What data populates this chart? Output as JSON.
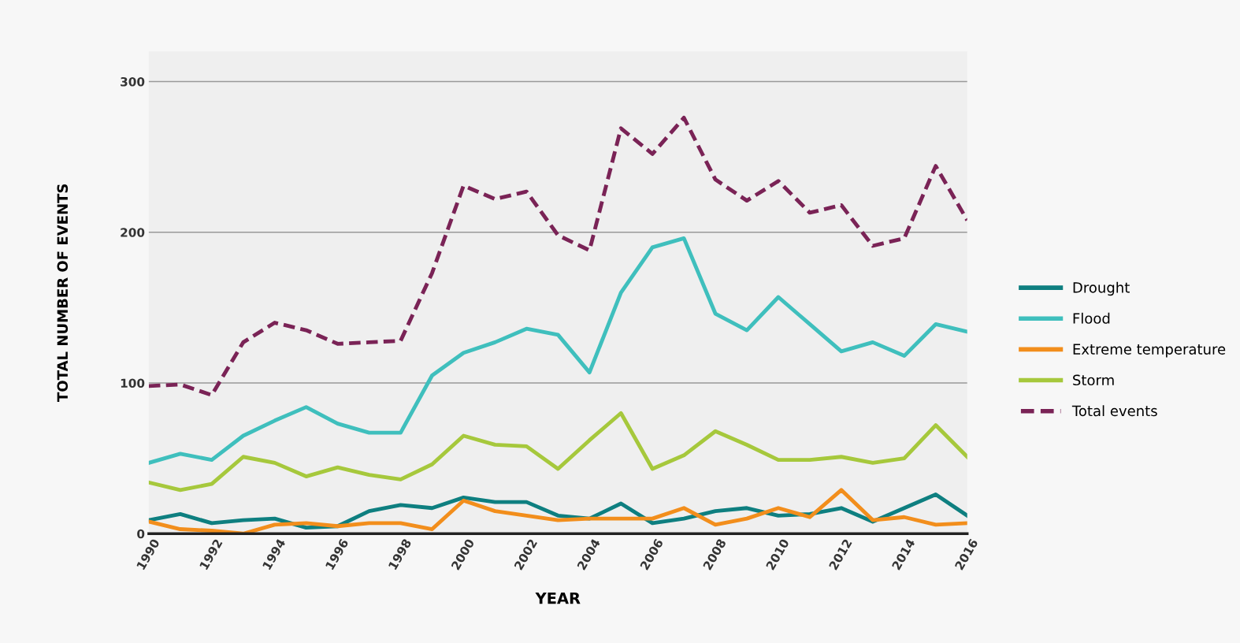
{
  "chart_data": {
    "type": "line",
    "xlabel": "YEAR",
    "ylabel": "TOTAL NUMBER OF EVENTS",
    "x": [
      1990,
      1991,
      1992,
      1993,
      1994,
      1995,
      1996,
      1997,
      1998,
      1999,
      2000,
      2001,
      2002,
      2003,
      2004,
      2005,
      2006,
      2007,
      2008,
      2009,
      2010,
      2011,
      2012,
      2013,
      2014,
      2015,
      2016
    ],
    "xlim": [
      1990,
      2016
    ],
    "xticks": [
      1990,
      1992,
      1994,
      1996,
      1998,
      2000,
      2002,
      2004,
      2006,
      2008,
      2010,
      2012,
      2014,
      2016
    ],
    "ylim": [
      0,
      320
    ],
    "yticks": [
      0,
      100,
      200,
      300
    ],
    "grid": "y",
    "legend": "right",
    "series": [
      {
        "name": "Drought",
        "color": "#0e7f80",
        "values": [
          9,
          13,
          7,
          9,
          10,
          4,
          5,
          15,
          19,
          17,
          24,
          21,
          21,
          12,
          10,
          20,
          7,
          10,
          15,
          17,
          12,
          13,
          17,
          8,
          17,
          26,
          12
        ]
      },
      {
        "name": "Flood",
        "color": "#3fbfbd",
        "values": [
          47,
          53,
          49,
          65,
          75,
          84,
          73,
          67,
          67,
          105,
          120,
          127,
          136,
          132,
          107,
          160,
          190,
          196,
          146,
          135,
          157,
          139,
          121,
          127,
          118,
          139,
          134
        ]
      },
      {
        "name": "Extreme temperature",
        "color": "#f28e1c",
        "values": [
          8,
          3,
          2,
          0,
          6,
          7,
          5,
          7,
          7,
          3,
          22,
          15,
          12,
          9,
          10,
          10,
          10,
          17,
          6,
          10,
          17,
          11,
          29,
          9,
          11,
          6,
          7
        ]
      },
      {
        "name": "Storm",
        "color": "#a6c83c",
        "values": [
          34,
          29,
          33,
          51,
          47,
          38,
          44,
          39,
          36,
          46,
          65,
          59,
          58,
          43,
          62,
          80,
          43,
          52,
          68,
          59,
          49,
          49,
          51,
          47,
          50,
          72,
          51
        ]
      },
      {
        "name": "Total events",
        "color": "#7a2356",
        "line_style": "dashed",
        "values": [
          98,
          99,
          92,
          127,
          140,
          135,
          126,
          127,
          128,
          173,
          231,
          222,
          227,
          198,
          188,
          269,
          252,
          276,
          235,
          221,
          234,
          213,
          218,
          191,
          196,
          244,
          208
        ]
      }
    ]
  }
}
